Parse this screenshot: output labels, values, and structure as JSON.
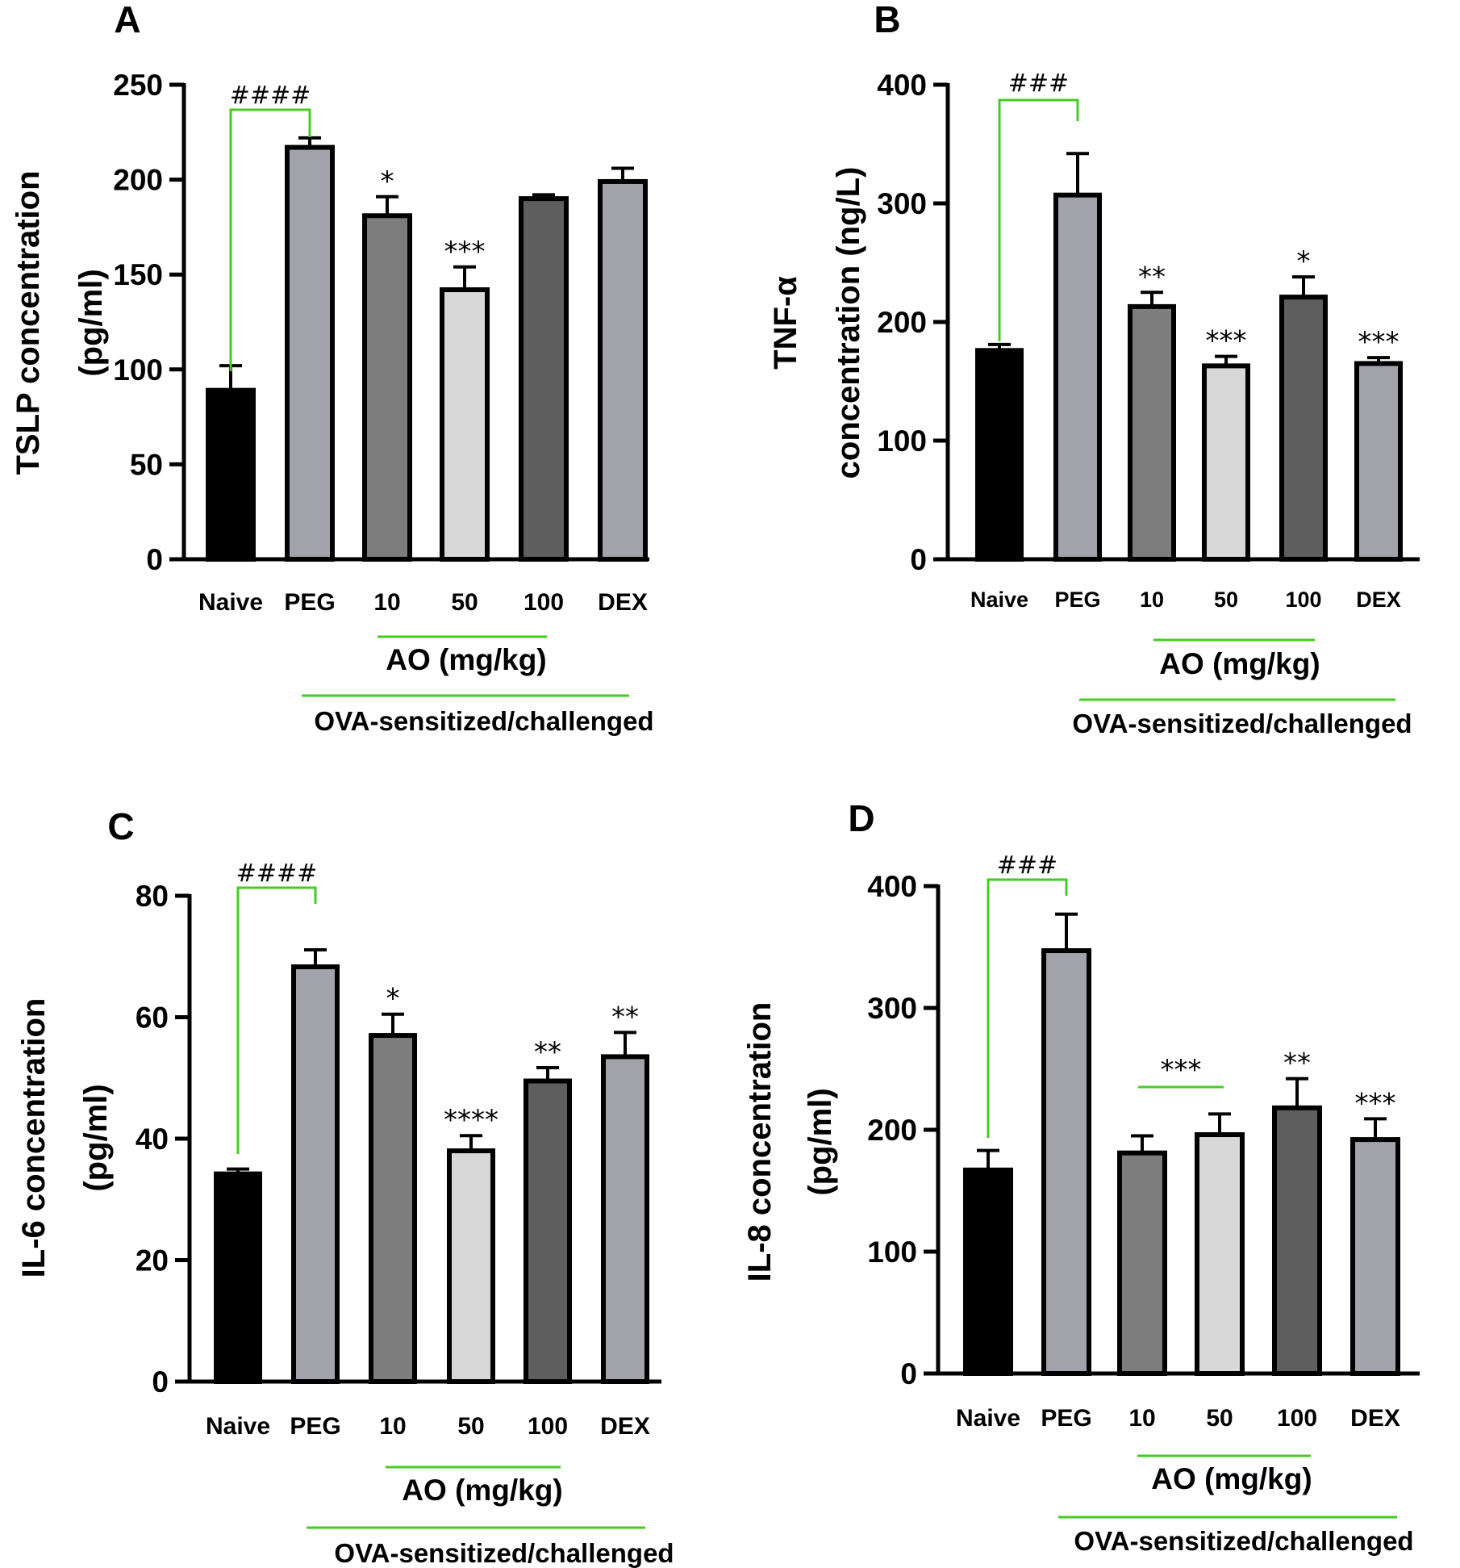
{
  "colors": {
    "bracket": "#44cc22",
    "axis": "#000000",
    "bar_fills": [
      "#000000",
      "#a2a2aa",
      "#7d7d7d",
      "#d8d8d8",
      "#5e5e5e",
      "#a2a2aa"
    ]
  },
  "chart_data": [
    {
      "panel_letter": "A",
      "type": "bar",
      "ylabel_lines": [
        "TSLP concentration",
        "(pg/ml)"
      ],
      "ylim": [
        0,
        250
      ],
      "yticks": [
        0,
        50,
        100,
        150,
        200,
        250
      ],
      "categories": [
        "Naive",
        "PEG",
        "10",
        "50",
        "100",
        "DEX"
      ],
      "values": [
        89,
        217,
        181,
        142,
        190,
        199
      ],
      "errors": [
        13,
        5,
        10,
        12,
        2,
        7
      ],
      "annotations": [
        "",
        "",
        "*",
        "***",
        "",
        ""
      ],
      "comparison": {
        "label": "####",
        "from": "Naive",
        "to": "PEG"
      },
      "group_labels": {
        "dose": "AO (mg/kg)",
        "model": "OVA-sensitized/challenged"
      }
    },
    {
      "panel_letter": "B",
      "type": "bar",
      "ylabel_lines": [
        "TNF-α",
        "concentration (ng/L)"
      ],
      "ylim": [
        0,
        400
      ],
      "yticks": [
        0,
        100,
        200,
        300,
        400
      ],
      "categories": [
        "Naive",
        "PEG",
        "10",
        "50",
        "100",
        "DEX"
      ],
      "values": [
        176,
        307,
        213,
        163,
        221,
        165
      ],
      "errors": [
        5,
        35,
        12,
        8,
        17,
        5
      ],
      "annotations": [
        "",
        "",
        "**",
        "***",
        "*",
        "***"
      ],
      "comparison": {
        "label": "###",
        "from": "Naive",
        "to": "PEG"
      },
      "group_labels": {
        "dose": "AO (mg/kg)",
        "model": "OVA-sensitized/challenged"
      }
    },
    {
      "panel_letter": "C",
      "type": "bar",
      "ylabel_lines": [
        "IL-6 concentration",
        "(pg/ml)"
      ],
      "ylim": [
        0,
        80
      ],
      "yticks": [
        0,
        20,
        40,
        60,
        80
      ],
      "categories": [
        "Naive",
        "PEG",
        "10",
        "50",
        "100",
        "DEX"
      ],
      "values": [
        34.2,
        68.3,
        57,
        38,
        49.5,
        53.5
      ],
      "errors": [
        0.8,
        2.8,
        3.5,
        2.5,
        2.2,
        4
      ],
      "annotations": [
        "",
        "",
        "*",
        "****",
        "**",
        "**"
      ],
      "comparison": {
        "label": "####",
        "from": "Naive",
        "to": "PEG"
      },
      "group_labels": {
        "dose": "AO (mg/kg)",
        "model": "OVA-sensitized/challenged"
      }
    },
    {
      "panel_letter": "D",
      "type": "bar",
      "ylabel_lines": [
        "IL-8 concentration",
        "(pg/ml)"
      ],
      "ylim": [
        0,
        400
      ],
      "yticks": [
        0,
        100,
        200,
        300,
        400
      ],
      "categories": [
        "Naive",
        "PEG",
        "10",
        "50",
        "100",
        "DEX"
      ],
      "values": [
        167,
        347,
        181,
        196,
        218,
        192
      ],
      "errors": [
        16,
        30,
        14,
        17,
        24,
        17
      ],
      "annotations": [
        "",
        "",
        "",
        "",
        "**",
        "***"
      ],
      "span_annotation": {
        "label": "***",
        "from": "10",
        "to": "50"
      },
      "comparison": {
        "label": "###",
        "from": "Naive",
        "to": "PEG"
      },
      "group_labels": {
        "dose": "AO (mg/kg)",
        "model": "OVA-sensitized/challenged"
      }
    }
  ]
}
